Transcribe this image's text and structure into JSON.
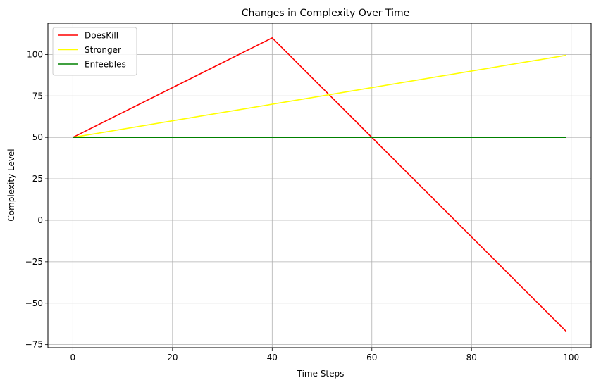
{
  "chart_data": {
    "type": "line",
    "title": "Changes in Complexity Over Time",
    "xlabel": "Time Steps",
    "ylabel": "Complexity Level",
    "xlim": [
      -5,
      104
    ],
    "ylim": [
      -76.85,
      118.85
    ],
    "xticks": [
      0,
      20,
      40,
      60,
      80,
      100
    ],
    "yticks": [
      -75,
      -50,
      -25,
      0,
      25,
      50,
      75,
      100
    ],
    "grid": true,
    "legend": "top-left",
    "series": [
      {
        "name": "DoesKill",
        "color": "#ff0000",
        "x": [
          0,
          40,
          99
        ],
        "y": [
          50,
          110,
          -67
        ]
      },
      {
        "name": "Stronger",
        "color": "#ffff00",
        "x": [
          0,
          99
        ],
        "y": [
          50,
          99.5
        ]
      },
      {
        "name": "Enfeebles",
        "color": "#008000",
        "x": [
          0,
          99
        ],
        "y": [
          50,
          50
        ]
      }
    ]
  }
}
